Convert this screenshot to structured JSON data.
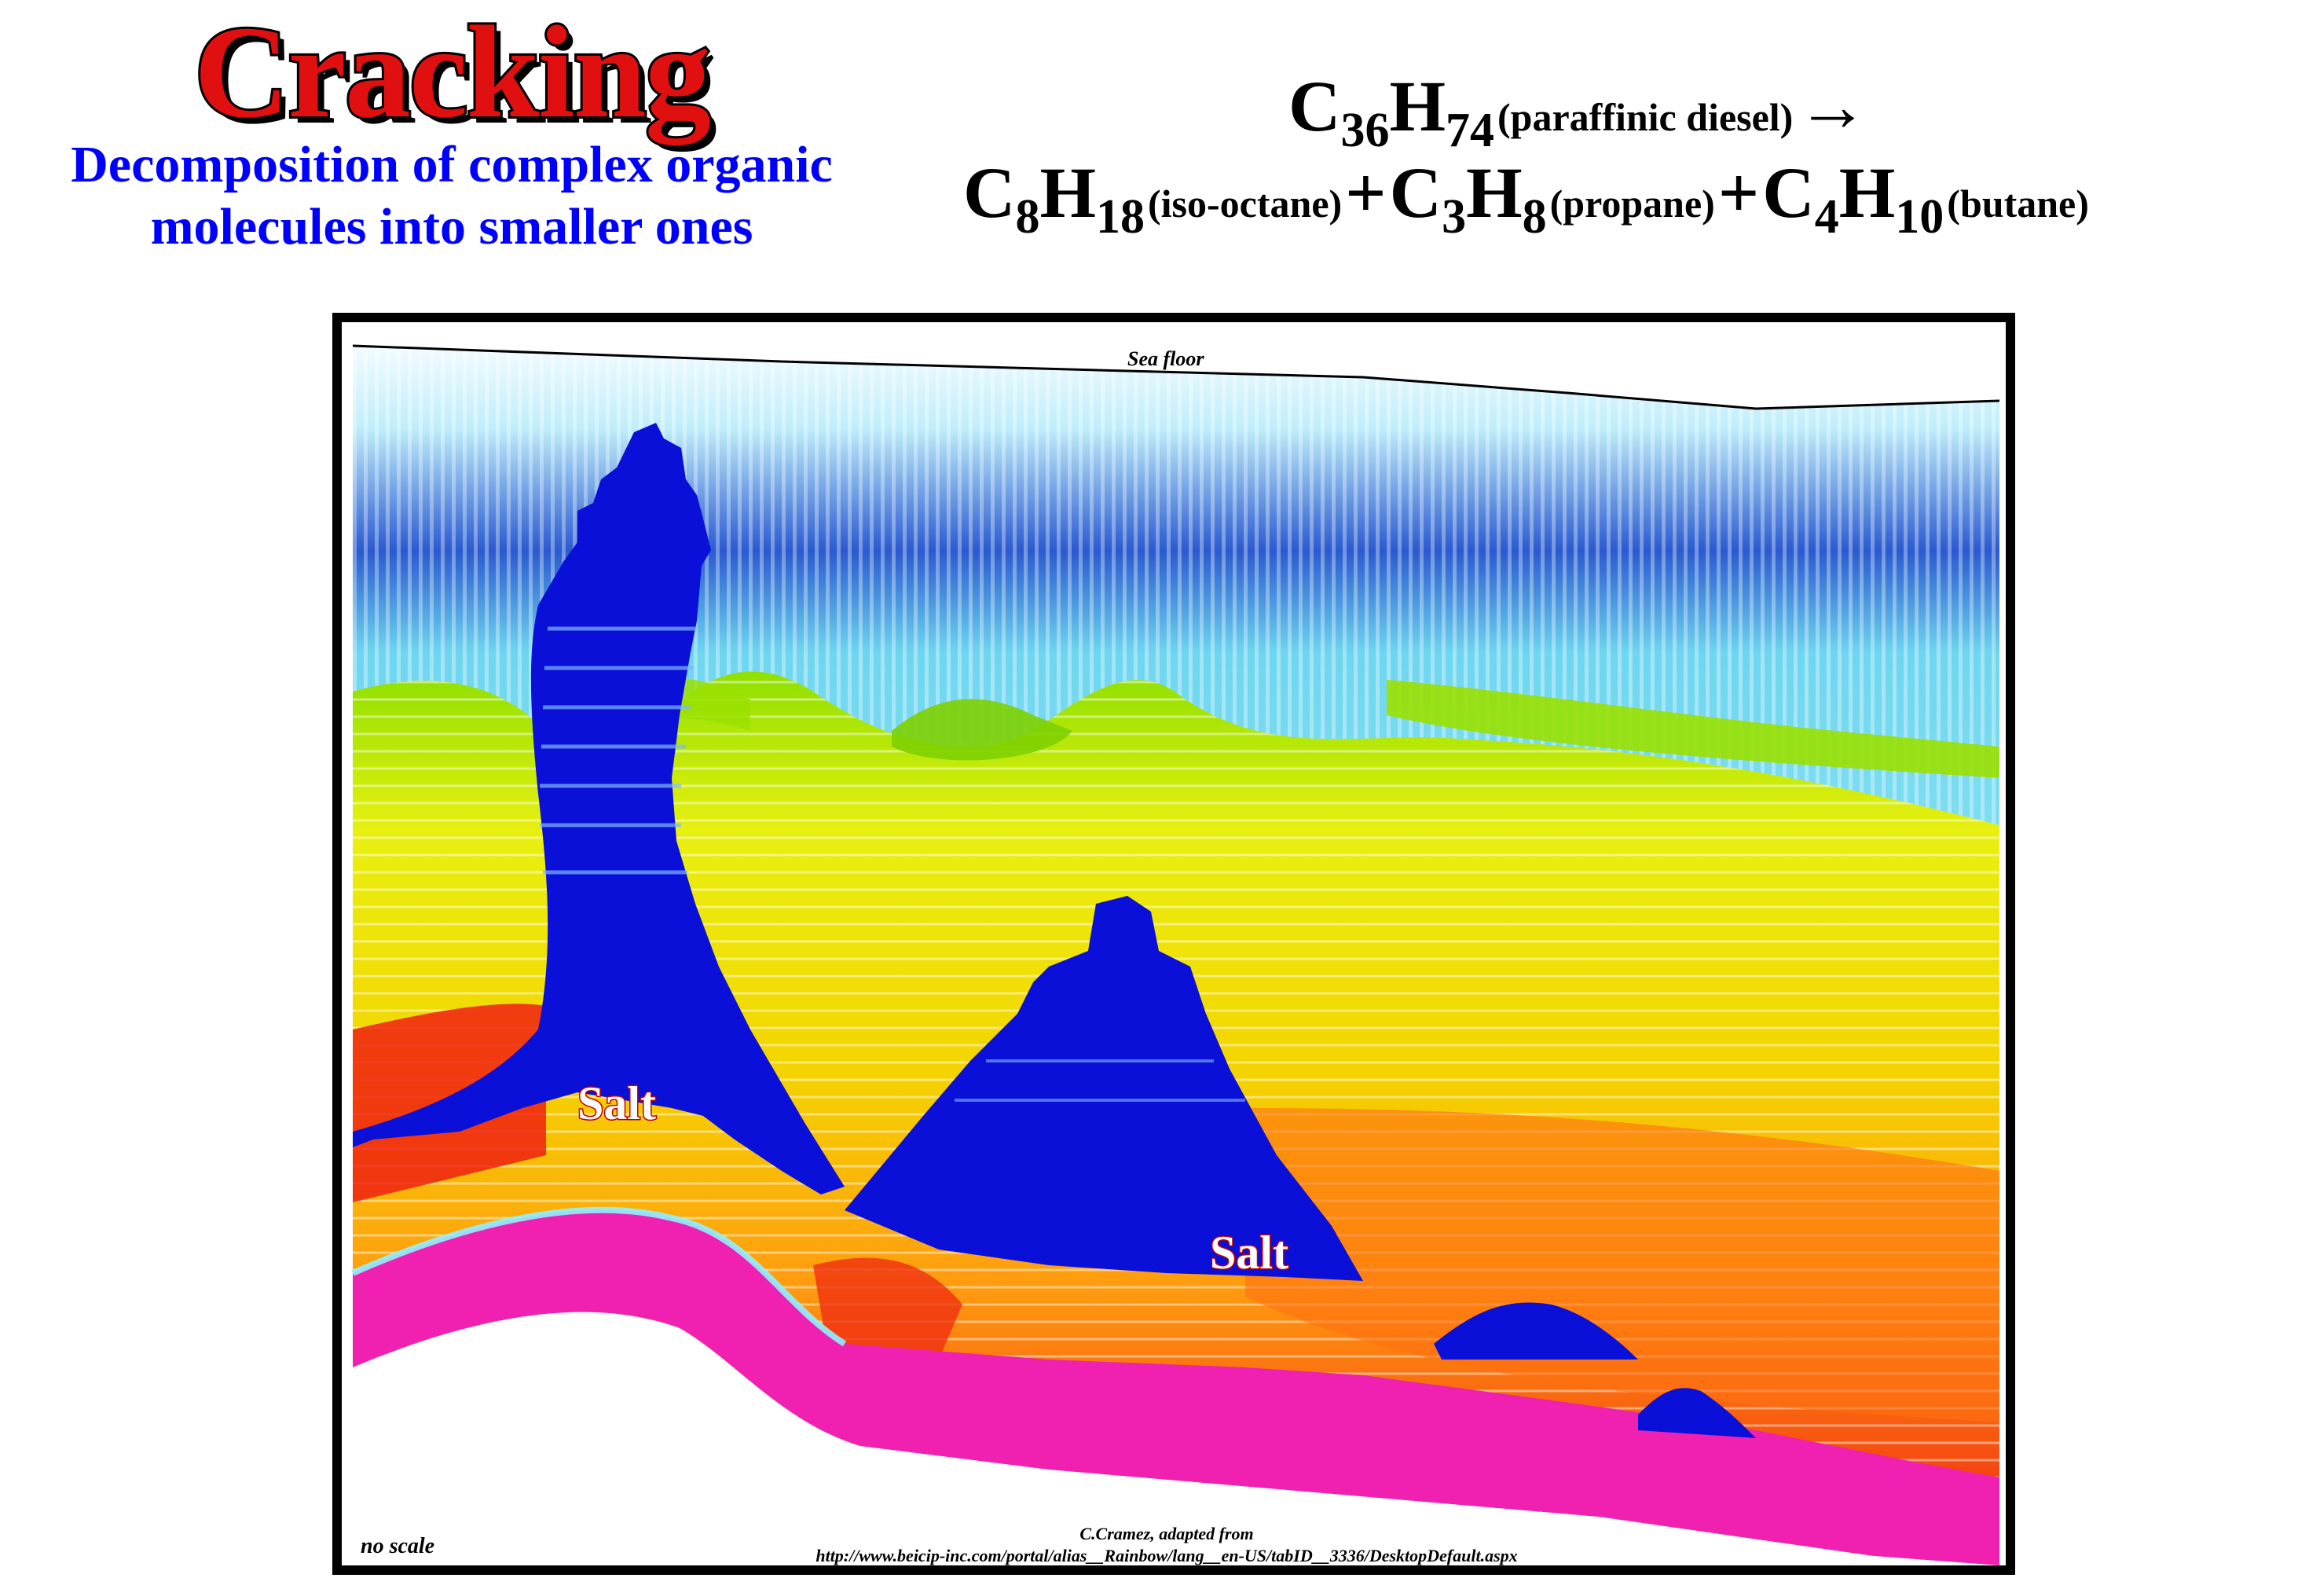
{
  "header": {
    "title": "Cracking",
    "subtitle_line1": "Decomposition of complex organic",
    "subtitle_line2": "molecules into smaller ones"
  },
  "equation": {
    "line1": {
      "c": "C",
      "c_sub": "36",
      "h": "H",
      "h_sub": "74",
      "name": "(paraffinic diesel)",
      "arrow": "→"
    },
    "line2": [
      {
        "c": "C",
        "c_sub": "8",
        "h": "H",
        "h_sub": "18",
        "name": "(iso-octane)"
      },
      {
        "plus": "+",
        "c": "C",
        "c_sub": "3",
        "h": "H",
        "h_sub": "8",
        "name": "(propane)"
      },
      {
        "plus": "+",
        "c": "C",
        "c_sub": "4",
        "h": "H",
        "h_sub": "10",
        "name": "(butane)"
      }
    ]
  },
  "figure": {
    "sea_floor_label": "Sea floor",
    "salt_label_1": "Salt",
    "salt_label_2": "Salt",
    "no_scale_label": "no scale",
    "credit_line1": "C.Cramez, adapted from",
    "credit_line2": "http://www.beicip-inc.com/portal/alias__Rainbow/lang__en-US/tabID__3336/DesktopDefault.aspx"
  },
  "colors": {
    "title": "#e01010",
    "subtitle": "#0000ff",
    "water_top": "#e8f6ff",
    "water": "#7fe0f0",
    "water_deep": "#1a3aa8",
    "green": "#8ee000",
    "yellow": "#f0f000",
    "orange": "#ff9a10",
    "red": "#f02010",
    "magenta": "#f020b0",
    "salt": "#0a10d8"
  }
}
